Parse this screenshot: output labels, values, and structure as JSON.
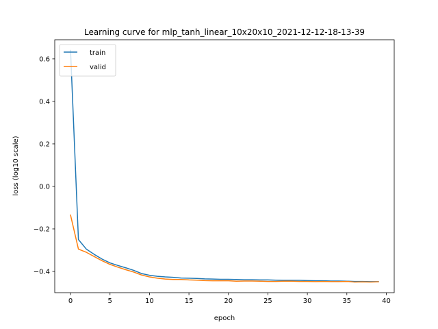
{
  "chart_data": {
    "type": "line",
    "title": "Learning curve for mlp_tanh_linear_10x20x10_2021-12-12-18-13-39",
    "xlabel": "epoch",
    "ylabel": "loss (log10 scale)",
    "xlim": [
      -2,
      41
    ],
    "ylim": [
      -0.5,
      0.69
    ],
    "xticks": [
      0,
      5,
      10,
      15,
      20,
      25,
      30,
      35,
      40
    ],
    "yticks": [
      -0.4,
      -0.2,
      0.0,
      0.2,
      0.4,
      0.6
    ],
    "ytick_labels": [
      "−0.4",
      "−0.2",
      "0.0",
      "0.2",
      "0.4",
      "0.6"
    ],
    "legend_position": "top-left",
    "x": [
      0,
      1,
      2,
      3,
      4,
      5,
      6,
      7,
      8,
      9,
      10,
      11,
      12,
      13,
      14,
      15,
      16,
      17,
      18,
      19,
      20,
      21,
      22,
      23,
      24,
      25,
      26,
      27,
      28,
      29,
      30,
      31,
      32,
      33,
      34,
      35,
      36,
      37,
      38,
      39
    ],
    "series": [
      {
        "name": "train",
        "color": "#1f77b4",
        "values": [
          0.64,
          -0.25,
          -0.295,
          -0.32,
          -0.342,
          -0.36,
          -0.372,
          -0.383,
          -0.395,
          -0.41,
          -0.418,
          -0.423,
          -0.426,
          -0.428,
          -0.431,
          -0.432,
          -0.433,
          -0.435,
          -0.436,
          -0.437,
          -0.437,
          -0.438,
          -0.439,
          -0.439,
          -0.44,
          -0.44,
          -0.441,
          -0.442,
          -0.442,
          -0.442,
          -0.443,
          -0.444,
          -0.444,
          -0.445,
          -0.445,
          -0.446,
          -0.447,
          -0.447,
          -0.448,
          -0.448
        ]
      },
      {
        "name": "valid",
        "color": "#ff7f0e",
        "values": [
          -0.135,
          -0.295,
          -0.31,
          -0.33,
          -0.35,
          -0.367,
          -0.38,
          -0.392,
          -0.403,
          -0.417,
          -0.426,
          -0.432,
          -0.436,
          -0.438,
          -0.438,
          -0.44,
          -0.441,
          -0.443,
          -0.444,
          -0.444,
          -0.444,
          -0.446,
          -0.445,
          -0.445,
          -0.446,
          -0.447,
          -0.447,
          -0.446,
          -0.446,
          -0.447,
          -0.447,
          -0.448,
          -0.447,
          -0.448,
          -0.448,
          -0.447,
          -0.45,
          -0.449,
          -0.45,
          -0.449
        ]
      }
    ]
  }
}
